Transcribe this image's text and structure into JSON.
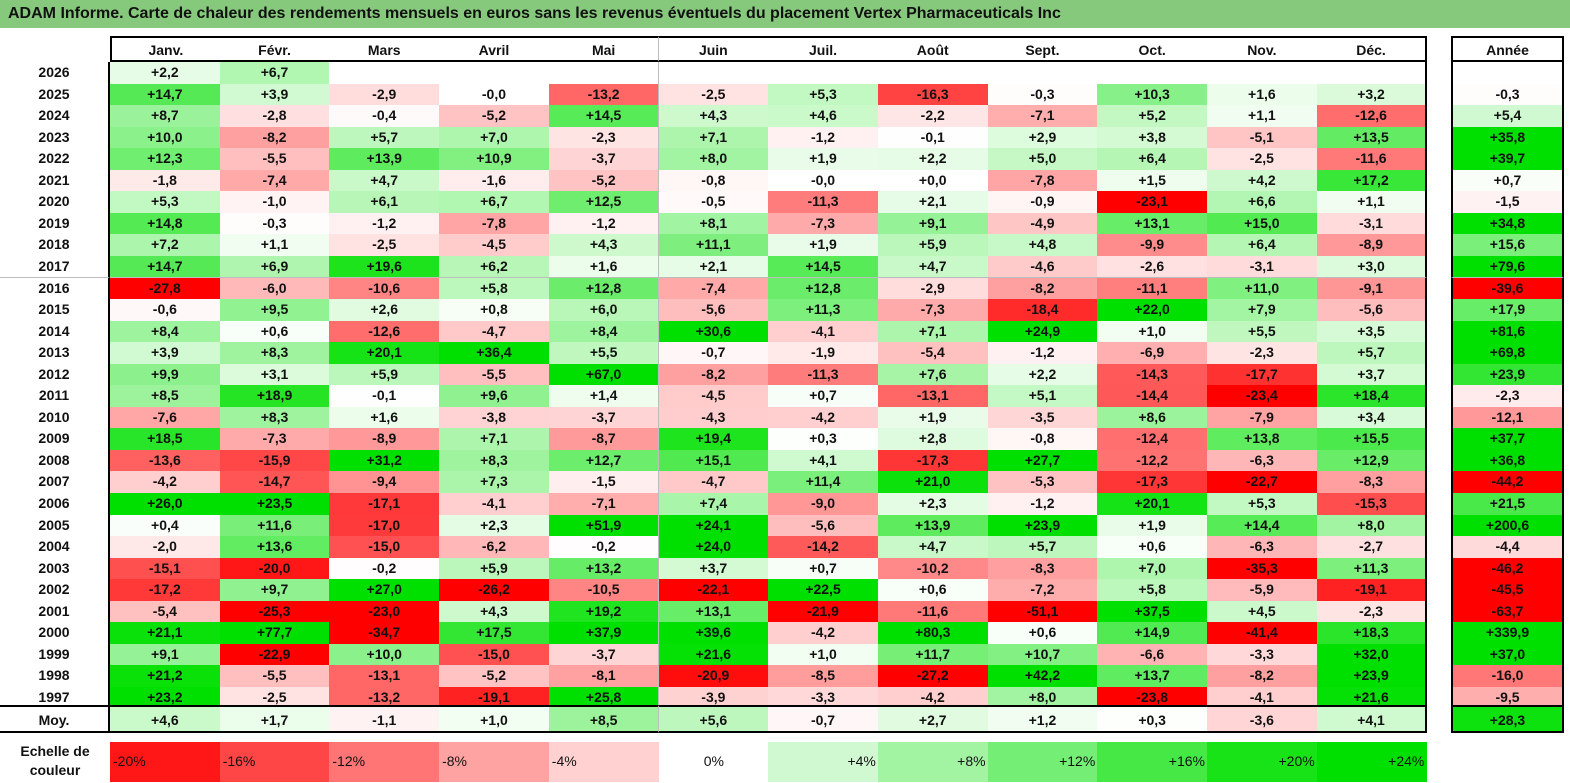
{
  "title": "ADAM Informe. Carte de chaleur des rendements mensuels en euros sans les revenus éventuels du placement Vertex Pharmaceuticals Inc",
  "chart_data": {
    "type": "heatmap",
    "title": "ADAM Informe. Carte de chaleur des rendements mensuels en euros sans les revenus éventuels du placement Vertex Pharmaceuticals Inc",
    "columns": [
      "Janv.",
      "Févr.",
      "Mars",
      "Avril",
      "Mai",
      "Juin",
      "Juil.",
      "Août",
      "Sept.",
      "Oct.",
      "Nov.",
      "Déc."
    ],
    "annual_header": "Année",
    "rows": [
      {
        "year": "2026",
        "values": [
          "+2,2",
          "+6,7",
          "",
          "",
          "",
          "",
          "",
          "",
          "",
          "",
          "",
          ""
        ],
        "annual": ""
      },
      {
        "year": "2025",
        "values": [
          "+14,7",
          "+3,9",
          "-2,9",
          "-0,0",
          "-13,2",
          "-2,5",
          "+5,3",
          "-16,3",
          "-0,3",
          "+10,3",
          "+1,6",
          "+3,2"
        ],
        "annual": "-0,3"
      },
      {
        "year": "2024",
        "values": [
          "+8,7",
          "-2,8",
          "-0,4",
          "-5,2",
          "+14,5",
          "+4,3",
          "+4,6",
          "-2,2",
          "-7,1",
          "+5,2",
          "+1,1",
          "-12,6"
        ],
        "annual": "+5,4"
      },
      {
        "year": "2023",
        "values": [
          "+10,0",
          "-8,2",
          "+5,7",
          "+7,0",
          "-2,3",
          "+7,1",
          "-1,2",
          "-0,1",
          "+2,9",
          "+3,8",
          "-5,1",
          "+13,5"
        ],
        "annual": "+35,8"
      },
      {
        "year": "2022",
        "values": [
          "+12,3",
          "-5,5",
          "+13,9",
          "+10,9",
          "-3,7",
          "+8,0",
          "+1,9",
          "+2,2",
          "+5,0",
          "+6,4",
          "-2,5",
          "-11,6"
        ],
        "annual": "+39,7"
      },
      {
        "year": "2021",
        "values": [
          "-1,8",
          "-7,4",
          "+4,7",
          "-1,6",
          "-5,2",
          "-0,8",
          "-0,0",
          "+0,0",
          "-7,8",
          "+1,5",
          "+4,2",
          "+17,2"
        ],
        "annual": "+0,7"
      },
      {
        "year": "2020",
        "values": [
          "+5,3",
          "-1,0",
          "+6,1",
          "+6,7",
          "+12,5",
          "-0,5",
          "-11,3",
          "+2,1",
          "-0,9",
          "-23,1",
          "+6,6",
          "+1,1"
        ],
        "annual": "-1,5"
      },
      {
        "year": "2019",
        "values": [
          "+14,8",
          "-0,3",
          "-1,2",
          "-7,8",
          "-1,2",
          "+8,1",
          "-7,3",
          "+9,1",
          "-4,9",
          "+13,1",
          "+15,0",
          "-3,1"
        ],
        "annual": "+34,8"
      },
      {
        "year": "2018",
        "values": [
          "+7,2",
          "+1,1",
          "-2,5",
          "-4,5",
          "+4,3",
          "+11,1",
          "+1,9",
          "+5,9",
          "+4,8",
          "-9,9",
          "+6,4",
          "-8,9"
        ],
        "annual": "+15,6"
      },
      {
        "year": "2017",
        "values": [
          "+14,7",
          "+6,9",
          "+19,6",
          "+6,2",
          "+1,6",
          "+2,1",
          "+14,5",
          "+4,7",
          "-4,6",
          "-2,6",
          "-3,1",
          "+3,0"
        ],
        "annual": "+79,6"
      },
      {
        "year": "2016",
        "values": [
          "-27,8",
          "-6,0",
          "-10,6",
          "+5,8",
          "+12,8",
          "-7,4",
          "+12,8",
          "-2,9",
          "-8,2",
          "-11,1",
          "+11,0",
          "-9,1"
        ],
        "annual": "-39,6"
      },
      {
        "year": "2015",
        "values": [
          "-0,6",
          "+9,5",
          "+2,6",
          "+0,8",
          "+6,0",
          "-5,6",
          "+11,3",
          "-7,3",
          "-18,4",
          "+22,0",
          "+7,9",
          "-5,6"
        ],
        "annual": "+17,9"
      },
      {
        "year": "2014",
        "values": [
          "+8,4",
          "+0,6",
          "-12,6",
          "-4,7",
          "+8,4",
          "+30,6",
          "-4,1",
          "+7,1",
          "+24,9",
          "+1,0",
          "+5,5",
          "+3,5"
        ],
        "annual": "+81,6"
      },
      {
        "year": "2013",
        "values": [
          "+3,9",
          "+8,3",
          "+20,1",
          "+36,4",
          "+5,5",
          "-0,7",
          "-1,9",
          "-5,4",
          "-1,2",
          "-6,9",
          "-2,3",
          "+5,7"
        ],
        "annual": "+69,8"
      },
      {
        "year": "2012",
        "values": [
          "+9,9",
          "+3,1",
          "+5,9",
          "-5,5",
          "+67,0",
          "-8,2",
          "-11,3",
          "+7,6",
          "+2,2",
          "-14,3",
          "-17,7",
          "+3,7"
        ],
        "annual": "+23,9"
      },
      {
        "year": "2011",
        "values": [
          "+8,5",
          "+18,9",
          "-0,1",
          "+9,6",
          "+1,4",
          "-4,5",
          "+0,7",
          "-13,1",
          "+5,1",
          "-14,4",
          "-23,4",
          "+18,4"
        ],
        "annual": "-2,3"
      },
      {
        "year": "2010",
        "values": [
          "-7,6",
          "+8,3",
          "+1,6",
          "-3,8",
          "-3,7",
          "-4,3",
          "-4,2",
          "+1,9",
          "-3,5",
          "+8,6",
          "-7,9",
          "+3,4"
        ],
        "annual": "-12,1"
      },
      {
        "year": "2009",
        "values": [
          "+18,5",
          "-7,3",
          "-8,9",
          "+7,1",
          "-8,7",
          "+19,4",
          "+0,3",
          "+2,8",
          "-0,8",
          "-12,4",
          "+13,8",
          "+15,5"
        ],
        "annual": "+37,7"
      },
      {
        "year": "2008",
        "values": [
          "-13,6",
          "-15,9",
          "+31,2",
          "+8,3",
          "+12,7",
          "+15,1",
          "+4,1",
          "-17,3",
          "+27,7",
          "-12,2",
          "-6,3",
          "+12,9"
        ],
        "annual": "+36,8"
      },
      {
        "year": "2007",
        "values": [
          "-4,2",
          "-14,7",
          "-9,4",
          "+7,3",
          "-1,5",
          "-4,7",
          "+11,4",
          "+21,0",
          "-5,3",
          "-17,3",
          "-22,7",
          "-8,3"
        ],
        "annual": "-44,2"
      },
      {
        "year": "2006",
        "values": [
          "+26,0",
          "+23,5",
          "-17,1",
          "-4,1",
          "-7,1",
          "+7,4",
          "-9,0",
          "+2,3",
          "-1,2",
          "+20,1",
          "+5,3",
          "-15,3"
        ],
        "annual": "+21,5"
      },
      {
        "year": "2005",
        "values": [
          "+0,4",
          "+11,6",
          "-17,0",
          "+2,3",
          "+51,9",
          "+24,1",
          "-5,6",
          "+13,9",
          "+23,9",
          "+1,9",
          "+14,4",
          "+8,0"
        ],
        "annual": "+200,6"
      },
      {
        "year": "2004",
        "values": [
          "-2,0",
          "+13,6",
          "-15,0",
          "-6,2",
          "-0,2",
          "+24,0",
          "-14,2",
          "+4,7",
          "+5,7",
          "+0,6",
          "-6,3",
          "-2,7"
        ],
        "annual": "-4,4"
      },
      {
        "year": "2003",
        "values": [
          "-15,1",
          "-20,0",
          "-0,2",
          "+5,9",
          "+13,2",
          "+3,7",
          "+0,7",
          "-10,2",
          "-8,3",
          "+7,0",
          "-35,3",
          "+11,3"
        ],
        "annual": "-46,2"
      },
      {
        "year": "2002",
        "values": [
          "-17,2",
          "+9,7",
          "+27,0",
          "-26,2",
          "-10,5",
          "-22,1",
          "+22,5",
          "+0,6",
          "-7,2",
          "+5,8",
          "-5,9",
          "-19,1"
        ],
        "annual": "-45,5"
      },
      {
        "year": "2001",
        "values": [
          "-5,4",
          "-25,3",
          "-23,0",
          "+4,3",
          "+19,2",
          "+13,1",
          "-21,9",
          "-11,6",
          "-51,1",
          "+37,5",
          "+4,5",
          "-2,3"
        ],
        "annual": "-63,7"
      },
      {
        "year": "2000",
        "values": [
          "+21,1",
          "+77,7",
          "-34,7",
          "+17,5",
          "+37,9",
          "+39,6",
          "-4,2",
          "+80,3",
          "+0,6",
          "+14,9",
          "-41,4",
          "+18,3"
        ],
        "annual": "+339,9"
      },
      {
        "year": "1999",
        "values": [
          "+9,1",
          "-22,9",
          "+10,0",
          "-15,0",
          "-3,7",
          "+21,6",
          "+1,0",
          "+11,7",
          "+10,7",
          "-6,6",
          "-3,3",
          "+32,0"
        ],
        "annual": "+37,0"
      },
      {
        "year": "1998",
        "values": [
          "+21,2",
          "-5,5",
          "-13,1",
          "-5,2",
          "-8,1",
          "-20,9",
          "-8,5",
          "-27,2",
          "+42,2",
          "+13,7",
          "-8,2",
          "+23,9"
        ],
        "annual": "-16,0"
      },
      {
        "year": "1997",
        "values": [
          "+23,2",
          "-2,5",
          "-13,2",
          "-19,1",
          "+25,8",
          "-3,9",
          "-3,3",
          "-4,2",
          "+8,0",
          "-23,8",
          "-4,1",
          "+21,6"
        ],
        "annual": "-9,5"
      }
    ],
    "average": {
      "label": "Moy.",
      "values": [
        "+4,6",
        "+1,7",
        "-1,1",
        "+1,0",
        "+8,5",
        "+5,6",
        "-0,7",
        "+2,7",
        "+1,2",
        "+0,3",
        "-3,6",
        "+4,1"
      ],
      "annual": "+28,3"
    },
    "scale": {
      "label_line1": "Echelle de",
      "label_line2": "couleur",
      "items": [
        "-20%",
        "-16%",
        "-12%",
        "-8%",
        "-4%",
        "0%",
        "+4%",
        "+8%",
        "+12%",
        "+16%",
        "+20%",
        "+24%"
      ],
      "values": [
        -20,
        -16,
        -12,
        -8,
        -4,
        0,
        4,
        8,
        12,
        16,
        20,
        24
      ]
    },
    "colors": {
      "negative": "#ff0000",
      "zero": "#ffffff",
      "positive": "#00e000",
      "title_bg": "#86c97c"
    }
  }
}
